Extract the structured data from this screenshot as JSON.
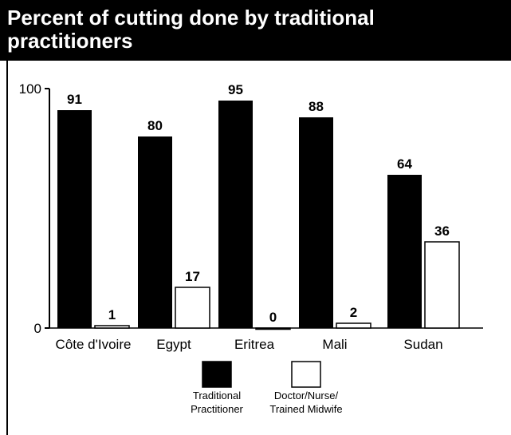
{
  "chart_data": {
    "type": "bar",
    "title": "Percent of cutting done by traditional practitioners",
    "categories": [
      "Côte d'Ivoire",
      "Egypt",
      "Eritrea",
      "Mali",
      "Sudan"
    ],
    "series": [
      {
        "name": "Traditional Practitioner",
        "values": [
          91,
          80,
          95,
          88,
          64
        ],
        "color": "#000000"
      },
      {
        "name": "Doctor/Nurse/ Trained Midwife",
        "values": [
          1,
          17,
          0,
          2,
          36
        ],
        "color": "#ffffff"
      }
    ],
    "y_ticks": [
      "100",
      "0"
    ],
    "ylim": [
      0,
      100
    ],
    "grid": false,
    "legend": {
      "placement": "bottom-center",
      "items": [
        {
          "line1": "Traditional",
          "line2": "Practitioner",
          "color": "#000000"
        },
        {
          "line1": "Doctor/Nurse/",
          "line2": "Trained Midwife",
          "color": "#ffffff"
        }
      ]
    }
  }
}
